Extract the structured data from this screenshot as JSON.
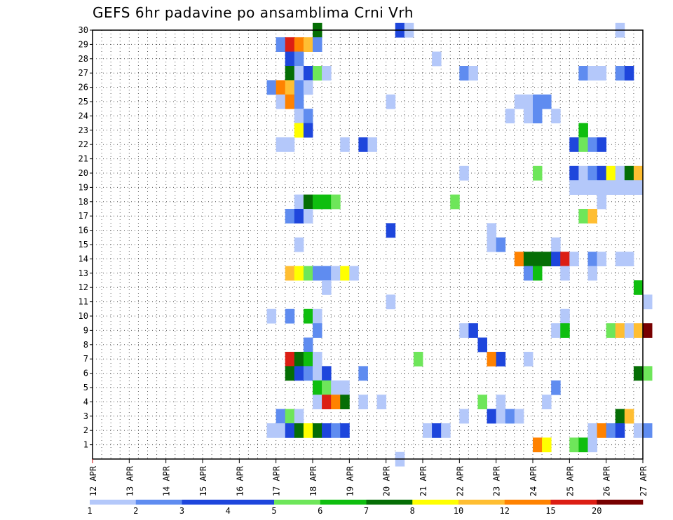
{
  "chart_data": {
    "type": "heatmap",
    "title": "GEFS 6hr padavine po ansamblima Crni Vrh",
    "xlabel": "",
    "ylabel": "",
    "x_ticks": [
      "12 APR",
      "13 APR",
      "14 APR",
      "15 APR",
      "16 APR",
      "17 APR",
      "18 APR",
      "19 APR",
      "20 APR",
      "21 APR",
      "22 APR",
      "23 APR",
      "24 APR",
      "25 APR",
      "26 APR",
      "27 APR"
    ],
    "x_range": [
      "12 APR 00Z",
      "27 APR 00Z"
    ],
    "x_step_hours": 6,
    "y_ticks": [
      1,
      2,
      3,
      4,
      5,
      6,
      7,
      8,
      9,
      10,
      11,
      12,
      13,
      14,
      15,
      16,
      17,
      18,
      19,
      20,
      21,
      22,
      23,
      24,
      25,
      26,
      27,
      28,
      29,
      30
    ],
    "y_range": [
      0,
      30
    ],
    "grid": "dotted",
    "colorbar": {
      "labels": [
        "1",
        "2",
        "3",
        "4",
        "5",
        "6",
        "7",
        "8",
        "10",
        "12",
        "15",
        "20"
      ],
      "colors": [
        "#b4c8fa",
        "#5f8cf0",
        "#1e46dc",
        "#1e46dc",
        "#6ee65a",
        "#0fbe0f",
        "#056e05",
        "#ffff00",
        "#ffbe32",
        "#ff8200",
        "#dc1e14",
        "#780000"
      ]
    },
    "cells": [
      [
        30,
        24,
        7
      ],
      [
        30,
        33,
        3
      ],
      [
        30,
        34,
        1
      ],
      [
        30,
        57,
        1
      ],
      [
        29,
        20,
        2
      ],
      [
        29,
        21,
        15
      ],
      [
        29,
        22,
        12
      ],
      [
        29,
        23,
        10
      ],
      [
        29,
        24,
        2
      ],
      [
        28,
        21,
        3
      ],
      [
        28,
        22,
        2
      ],
      [
        28,
        37,
        1
      ],
      [
        27,
        21,
        7
      ],
      [
        27,
        22,
        1
      ],
      [
        27,
        23,
        3
      ],
      [
        27,
        24,
        5
      ],
      [
        27,
        25,
        1
      ],
      [
        27,
        40,
        2
      ],
      [
        27,
        41,
        1
      ],
      [
        27,
        53,
        2
      ],
      [
        27,
        54,
        1
      ],
      [
        27,
        55,
        1
      ],
      [
        27,
        57,
        2
      ],
      [
        27,
        58,
        3
      ],
      [
        26,
        19,
        2
      ],
      [
        26,
        20,
        12
      ],
      [
        26,
        21,
        10
      ],
      [
        26,
        22,
        2
      ],
      [
        26,
        23,
        1
      ],
      [
        25,
        20,
        1
      ],
      [
        25,
        21,
        12
      ],
      [
        25,
        22,
        2
      ],
      [
        25,
        32,
        1
      ],
      [
        25,
        46,
        1
      ],
      [
        25,
        47,
        1
      ],
      [
        25,
        48,
        2
      ],
      [
        25,
        49,
        2
      ],
      [
        24,
        22,
        1
      ],
      [
        24,
        23,
        2
      ],
      [
        24,
        45,
        1
      ],
      [
        24,
        47,
        1
      ],
      [
        24,
        48,
        2
      ],
      [
        24,
        50,
        1
      ],
      [
        23,
        22,
        8
      ],
      [
        23,
        23,
        3
      ],
      [
        23,
        53,
        6
      ],
      [
        22,
        20,
        1
      ],
      [
        22,
        21,
        1
      ],
      [
        22,
        27,
        1
      ],
      [
        22,
        29,
        3
      ],
      [
        22,
        30,
        1
      ],
      [
        22,
        52,
        3
      ],
      [
        22,
        53,
        5
      ],
      [
        22,
        54,
        2
      ],
      [
        22,
        55,
        3
      ],
      [
        20,
        40,
        1
      ],
      [
        20,
        48,
        5
      ],
      [
        20,
        52,
        3
      ],
      [
        20,
        53,
        1
      ],
      [
        20,
        54,
        2
      ],
      [
        20,
        55,
        3
      ],
      [
        20,
        56,
        8
      ],
      [
        20,
        57,
        1
      ],
      [
        20,
        58,
        7
      ],
      [
        20,
        59,
        10
      ],
      [
        19,
        52,
        1
      ],
      [
        19,
        53,
        1
      ],
      [
        19,
        54,
        1
      ],
      [
        19,
        55,
        1
      ],
      [
        19,
        56,
        1
      ],
      [
        19,
        57,
        1
      ],
      [
        19,
        58,
        1
      ],
      [
        19,
        59,
        1
      ],
      [
        18,
        22,
        1
      ],
      [
        18,
        23,
        7
      ],
      [
        18,
        24,
        6
      ],
      [
        18,
        25,
        6
      ],
      [
        18,
        26,
        5
      ],
      [
        18,
        39,
        5
      ],
      [
        18,
        55,
        1
      ],
      [
        17,
        21,
        2
      ],
      [
        17,
        22,
        3
      ],
      [
        17,
        23,
        1
      ],
      [
        17,
        53,
        5
      ],
      [
        17,
        54,
        10
      ],
      [
        16,
        32,
        3
      ],
      [
        16,
        43,
        1
      ],
      [
        15,
        22,
        1
      ],
      [
        15,
        43,
        1
      ],
      [
        15,
        44,
        2
      ],
      [
        15,
        50,
        1
      ],
      [
        14,
        46,
        12
      ],
      [
        14,
        47,
        7
      ],
      [
        14,
        48,
        7
      ],
      [
        14,
        49,
        7
      ],
      [
        14,
        50,
        3
      ],
      [
        14,
        51,
        15
      ],
      [
        14,
        52,
        1
      ],
      [
        14,
        54,
        2
      ],
      [
        14,
        55,
        1
      ],
      [
        14,
        57,
        1
      ],
      [
        14,
        58,
        1
      ],
      [
        13,
        21,
        10
      ],
      [
        13,
        22,
        8
      ],
      [
        13,
        23,
        5
      ],
      [
        13,
        24,
        2
      ],
      [
        13,
        25,
        2
      ],
      [
        13,
        26,
        1
      ],
      [
        13,
        27,
        8
      ],
      [
        13,
        28,
        1
      ],
      [
        13,
        47,
        2
      ],
      [
        13,
        48,
        6
      ],
      [
        13,
        51,
        1
      ],
      [
        13,
        54,
        1
      ],
      [
        12,
        25,
        1
      ],
      [
        12,
        59,
        6
      ],
      [
        11,
        32,
        1
      ],
      [
        11,
        60,
        1
      ],
      [
        10,
        19,
        1
      ],
      [
        10,
        21,
        2
      ],
      [
        10,
        23,
        6
      ],
      [
        10,
        24,
        1
      ],
      [
        10,
        51,
        1
      ],
      [
        9,
        24,
        2
      ],
      [
        9,
        40,
        1
      ],
      [
        9,
        41,
        3
      ],
      [
        9,
        50,
        1
      ],
      [
        9,
        51,
        6
      ],
      [
        9,
        56,
        5
      ],
      [
        9,
        57,
        10
      ],
      [
        9,
        58,
        1
      ],
      [
        9,
        59,
        10
      ],
      [
        9,
        60,
        20
      ],
      [
        8,
        23,
        2
      ],
      [
        8,
        42,
        3
      ],
      [
        7,
        21,
        15
      ],
      [
        7,
        22,
        7
      ],
      [
        7,
        23,
        6
      ],
      [
        7,
        24,
        1
      ],
      [
        7,
        35,
        5
      ],
      [
        7,
        43,
        12
      ],
      [
        7,
        44,
        3
      ],
      [
        7,
        47,
        1
      ],
      [
        6,
        21,
        7
      ],
      [
        6,
        22,
        3
      ],
      [
        6,
        23,
        2
      ],
      [
        6,
        24,
        1
      ],
      [
        6,
        25,
        3
      ],
      [
        6,
        29,
        2
      ],
      [
        6,
        59,
        7
      ],
      [
        6,
        60,
        5
      ],
      [
        5,
        24,
        6
      ],
      [
        5,
        25,
        5
      ],
      [
        5,
        26,
        1
      ],
      [
        5,
        27,
        1
      ],
      [
        5,
        50,
        2
      ],
      [
        4,
        24,
        1
      ],
      [
        4,
        25,
        15
      ],
      [
        4,
        26,
        12
      ],
      [
        4,
        27,
        7
      ],
      [
        4,
        29,
        1
      ],
      [
        4,
        31,
        1
      ],
      [
        4,
        42,
        5
      ],
      [
        4,
        44,
        1
      ],
      [
        4,
        49,
        1
      ],
      [
        3,
        20,
        2
      ],
      [
        3,
        21,
        5
      ],
      [
        3,
        22,
        1
      ],
      [
        3,
        40,
        1
      ],
      [
        3,
        43,
        3
      ],
      [
        3,
        44,
        1
      ],
      [
        3,
        45,
        2
      ],
      [
        3,
        46,
        1
      ],
      [
        3,
        57,
        7
      ],
      [
        3,
        58,
        10
      ],
      [
        2,
        19,
        1
      ],
      [
        2,
        20,
        1
      ],
      [
        2,
        21,
        3
      ],
      [
        2,
        22,
        7
      ],
      [
        2,
        23,
        8
      ],
      [
        2,
        24,
        7
      ],
      [
        2,
        25,
        3
      ],
      [
        2,
        26,
        2
      ],
      [
        2,
        27,
        3
      ],
      [
        2,
        36,
        1
      ],
      [
        2,
        37,
        3
      ],
      [
        2,
        38,
        1
      ],
      [
        2,
        54,
        1
      ],
      [
        2,
        55,
        12
      ],
      [
        2,
        56,
        2
      ],
      [
        2,
        57,
        3
      ],
      [
        2,
        59,
        1
      ],
      [
        2,
        60,
        2
      ],
      [
        1,
        48,
        12
      ],
      [
        1,
        49,
        8
      ],
      [
        1,
        52,
        5
      ],
      [
        1,
        53,
        6
      ],
      [
        1,
        54,
        1
      ],
      [
        0,
        33,
        1
      ]
    ]
  }
}
